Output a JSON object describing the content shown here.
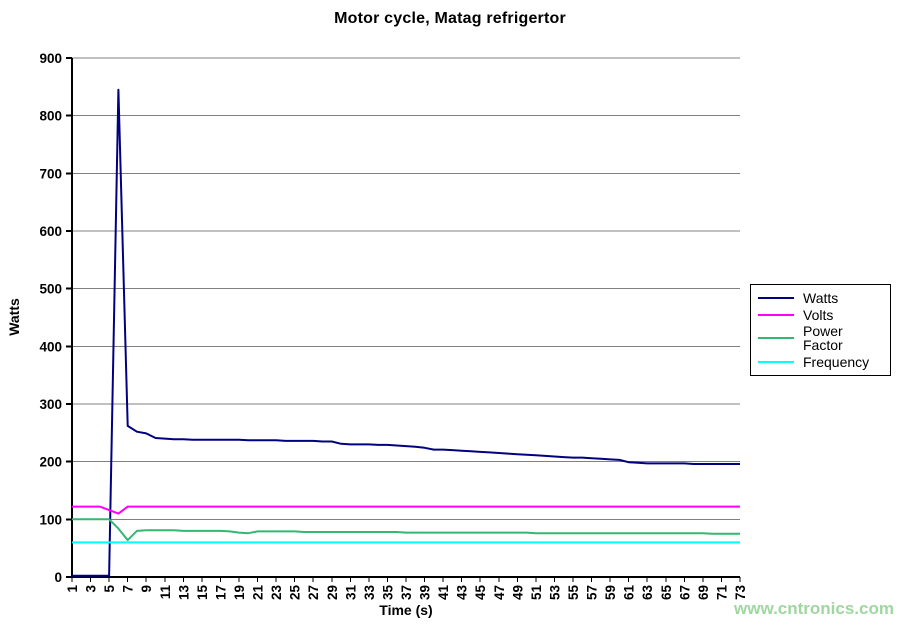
{
  "watermark": "www.cntronics.com",
  "colors": {
    "watts": "#000080",
    "volts": "#FF00FF",
    "power_factor": "#33B872",
    "frequency": "#00FFFF",
    "gridline": "#808080",
    "axis": "#000000",
    "watermark": "#A0D7A0",
    "background": "#FFFFFF"
  },
  "chart_data": {
    "type": "line",
    "title": "Motor cycle, Matag refrigertor",
    "xlabel": "Time (s)",
    "ylabel": "Watts",
    "ylim": [
      0,
      900
    ],
    "ytick_step": 100,
    "ytick_labels": [
      "0",
      "100",
      "200",
      "300",
      "400",
      "500",
      "600",
      "700",
      "800",
      "900"
    ],
    "grid": true,
    "legend_position": "right",
    "x": [
      1,
      2,
      3,
      4,
      5,
      6,
      7,
      8,
      9,
      10,
      11,
      12,
      13,
      14,
      15,
      16,
      17,
      18,
      19,
      20,
      21,
      22,
      23,
      24,
      25,
      26,
      27,
      28,
      29,
      30,
      31,
      32,
      33,
      34,
      35,
      36,
      37,
      38,
      39,
      40,
      41,
      42,
      43,
      44,
      45,
      46,
      47,
      48,
      49,
      50,
      51,
      52,
      53,
      54,
      55,
      56,
      57,
      58,
      59,
      60,
      61,
      62,
      63,
      64,
      65,
      66,
      67,
      68,
      69,
      70,
      71,
      72,
      73
    ],
    "xtick_labels": [
      1,
      3,
      5,
      7,
      9,
      11,
      13,
      15,
      17,
      19,
      21,
      23,
      25,
      27,
      29,
      31,
      33,
      35,
      37,
      39,
      41,
      43,
      45,
      47,
      49,
      51,
      53,
      55,
      57,
      59,
      61,
      63,
      65,
      67,
      69,
      71,
      73
    ],
    "series": [
      {
        "name": "Watts",
        "color": "#000080",
        "values": [
          2,
          2,
          2,
          2,
          2,
          845,
          262,
          252,
          249,
          241,
          240,
          239,
          239,
          238,
          238,
          238,
          238,
          238,
          238,
          237,
          237,
          237,
          237,
          236,
          236,
          236,
          236,
          235,
          235,
          231,
          230,
          230,
          230,
          229,
          229,
          228,
          227,
          226,
          224,
          221,
          221,
          220,
          219,
          218,
          217,
          216,
          215,
          214,
          213,
          212,
          211,
          210,
          209,
          208,
          207,
          207,
          206,
          205,
          204,
          203,
          199,
          198,
          197,
          197,
          197,
          197,
          197,
          196,
          196,
          196,
          196,
          196,
          196
        ]
      },
      {
        "name": "Volts",
        "color": "#FF00FF",
        "values": [
          122,
          122,
          122,
          122,
          116,
          110,
          122,
          122,
          122,
          122,
          122,
          122,
          122,
          122,
          122,
          122,
          122,
          122,
          122,
          122,
          122,
          122,
          122,
          122,
          122,
          122,
          122,
          122,
          122,
          122,
          122,
          122,
          122,
          122,
          122,
          122,
          122,
          122,
          122,
          122,
          122,
          122,
          122,
          122,
          122,
          122,
          122,
          122,
          122,
          122,
          122,
          122,
          122,
          122,
          122,
          122,
          122,
          122,
          122,
          122,
          122,
          122,
          122,
          122,
          122,
          122,
          122,
          122,
          122,
          122,
          122,
          122,
          122
        ]
      },
      {
        "name": "Power Factor",
        "color": "#33B872",
        "values": [
          100,
          100,
          100,
          100,
          100,
          84,
          64,
          80,
          81,
          81,
          81,
          81,
          80,
          80,
          80,
          80,
          80,
          79,
          77,
          76,
          79,
          79,
          79,
          79,
          79,
          78,
          78,
          78,
          78,
          78,
          78,
          78,
          78,
          78,
          78,
          78,
          77,
          77,
          77,
          77,
          77,
          77,
          77,
          77,
          77,
          77,
          77,
          77,
          77,
          77,
          76,
          76,
          76,
          76,
          76,
          76,
          76,
          76,
          76,
          76,
          76,
          76,
          76,
          76,
          76,
          76,
          76,
          76,
          76,
          75,
          75,
          75,
          75
        ]
      },
      {
        "name": "Frequency",
        "color": "#00FFFF",
        "values": [
          60,
          60,
          60,
          60,
          60,
          60,
          60,
          60,
          60,
          60,
          60,
          60,
          60,
          60,
          60,
          60,
          60,
          60,
          60,
          60,
          60,
          60,
          60,
          60,
          60,
          60,
          60,
          60,
          60,
          60,
          60,
          60,
          60,
          60,
          60,
          60,
          60,
          60,
          60,
          60,
          60,
          60,
          60,
          60,
          60,
          60,
          60,
          60,
          60,
          60,
          60,
          60,
          60,
          60,
          60,
          60,
          60,
          60,
          60,
          60,
          60,
          60,
          60,
          60,
          60,
          60,
          60,
          60,
          60,
          60,
          60,
          60,
          60
        ]
      }
    ]
  }
}
